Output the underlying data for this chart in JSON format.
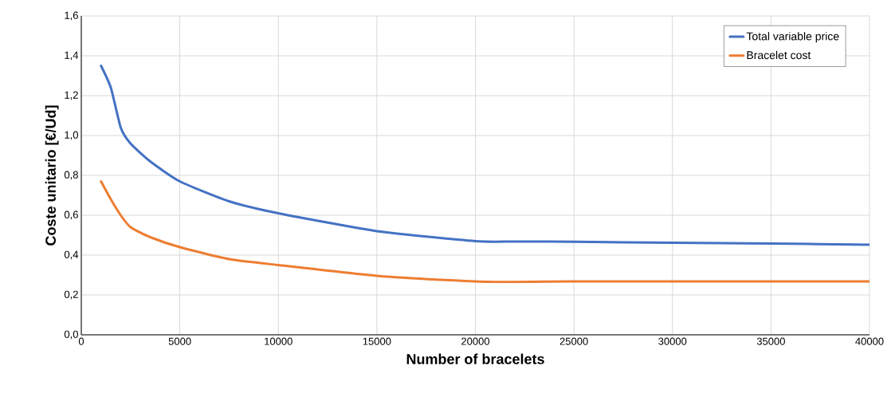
{
  "chart_data": {
    "type": "line",
    "xlabel": "Number of bracelets",
    "ylabel": "Coste unitario [€/Ud]",
    "xlim": [
      0,
      40000
    ],
    "xticks": [
      0,
      5000,
      10000,
      15000,
      20000,
      25000,
      30000,
      35000,
      40000
    ],
    "ylim": [
      0,
      1.6
    ],
    "yticks": [
      {
        "value": 0,
        "label": "0,0"
      },
      {
        "value": 0.2,
        "label": "0,2"
      },
      {
        "value": 0.4,
        "label": "0,4"
      },
      {
        "value": 0.6,
        "label": "0,6"
      },
      {
        "value": 0.8,
        "label": "0,8"
      },
      {
        "value": 1.0,
        "label": "1,0"
      },
      {
        "value": 1.2,
        "label": "1,2"
      },
      {
        "value": 1.4,
        "label": "1,4"
      },
      {
        "value": 1.6,
        "label": "1,6"
      }
    ],
    "grid": true,
    "legend": "top right",
    "marker": "none",
    "line_style": "solid",
    "x": [
      1000,
      1500,
      2000,
      2500,
      3500,
      5000,
      7500,
      10000,
      15000,
      20000,
      22000,
      25000,
      30000,
      35000,
      40000
    ],
    "series": [
      {
        "name": "Total variable price",
        "color": "#4472c4",
        "values": [
          1.35,
          1.24,
          1.04,
          0.96,
          0.87,
          0.77,
          0.67,
          0.61,
          0.52,
          0.47,
          0.468,
          0.467,
          0.462,
          0.458,
          0.452
        ]
      },
      {
        "name": "Bracelet cost",
        "color": "#ed7d31",
        "values": [
          0.77,
          0.68,
          0.6,
          0.54,
          0.49,
          0.44,
          0.38,
          0.35,
          0.296,
          0.268,
          0.265,
          0.268,
          0.268,
          0.268,
          0.268
        ]
      }
    ]
  }
}
